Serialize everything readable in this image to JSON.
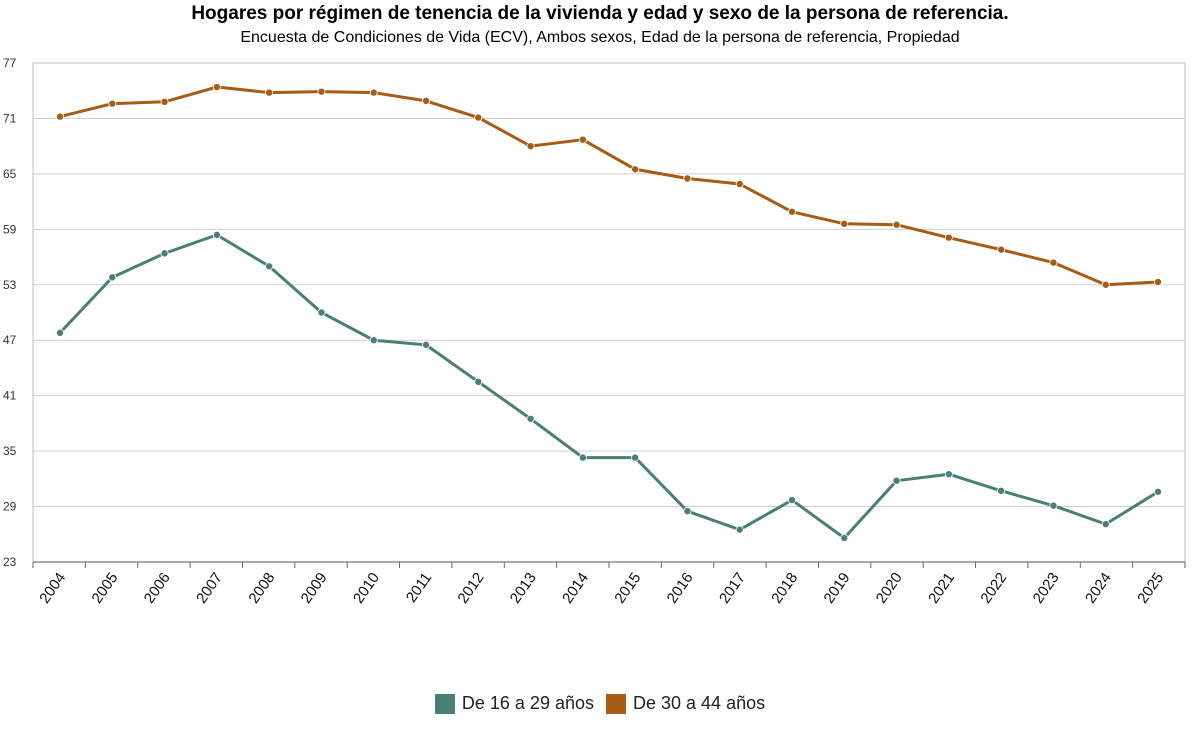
{
  "chart_data": {
    "type": "line",
    "title": "Hogares por régimen de tenencia de la vivienda y edad y sexo de la persona de referencia.",
    "subtitle": "Encuesta de Condiciones de Vida (ECV), Ambos sexos, Edad de la persona de referencia, Propiedad",
    "xlabel": "",
    "ylabel": "",
    "ylim": [
      23,
      77
    ],
    "yticks": [
      "23",
      "29",
      "35",
      "41",
      "47",
      "53",
      "59",
      "65",
      "71",
      "77"
    ],
    "categories": [
      "2004",
      "2005",
      "2006",
      "2007",
      "2008",
      "2009",
      "2010",
      "2011",
      "2012",
      "2013",
      "2014",
      "2015",
      "2016",
      "2017",
      "2018",
      "2019",
      "2020",
      "2021",
      "2022",
      "2023",
      "2024",
      "2025"
    ],
    "grid": true,
    "legend_position": "bottom",
    "series": [
      {
        "name": "De 16 a 29 años",
        "color": "#4a7f78",
        "values": [
          47.8,
          53.8,
          56.4,
          58.4,
          55.0,
          50.0,
          47.0,
          46.5,
          42.5,
          38.5,
          34.3,
          34.3,
          28.5,
          26.5,
          29.7,
          25.6,
          31.8,
          32.5,
          30.7,
          29.1,
          27.1,
          30.6
        ]
      },
      {
        "name": "De 30 a 44 años",
        "color": "#a65c14",
        "values": [
          71.2,
          72.6,
          72.8,
          74.4,
          73.8,
          73.9,
          73.8,
          72.9,
          71.1,
          68.0,
          68.7,
          65.5,
          64.5,
          63.9,
          60.9,
          59.6,
          59.5,
          58.1,
          56.8,
          55.4,
          53.0,
          53.3
        ]
      }
    ]
  }
}
